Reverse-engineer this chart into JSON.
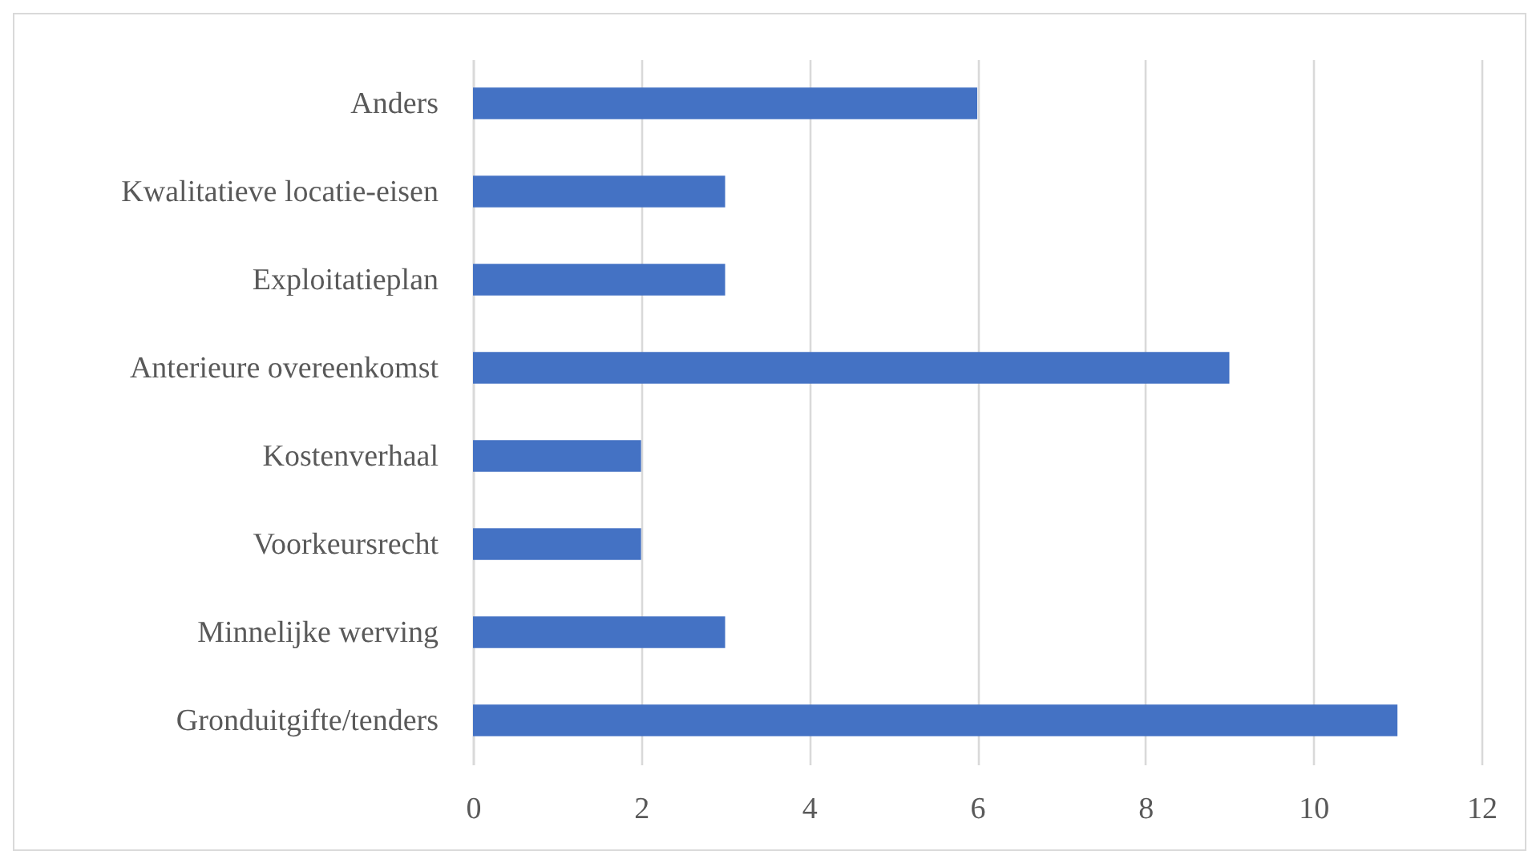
{
  "chart_data": {
    "type": "bar",
    "orientation": "horizontal",
    "categories": [
      "Anders",
      "Kwalitatieve locatie-eisen",
      "Exploitatieplan",
      "Anterieure overeenkomst",
      "Kostenverhaal",
      "Voorkeursrecht",
      "Minnelijke werving",
      "Gronduitgifte/tenders"
    ],
    "values": [
      6,
      3,
      3,
      9,
      2,
      2,
      3,
      11
    ],
    "color": "#4472c4",
    "xlim": [
      0,
      12
    ],
    "xticks": [
      0,
      2,
      4,
      6,
      8,
      10,
      12
    ],
    "grid": "x"
  }
}
